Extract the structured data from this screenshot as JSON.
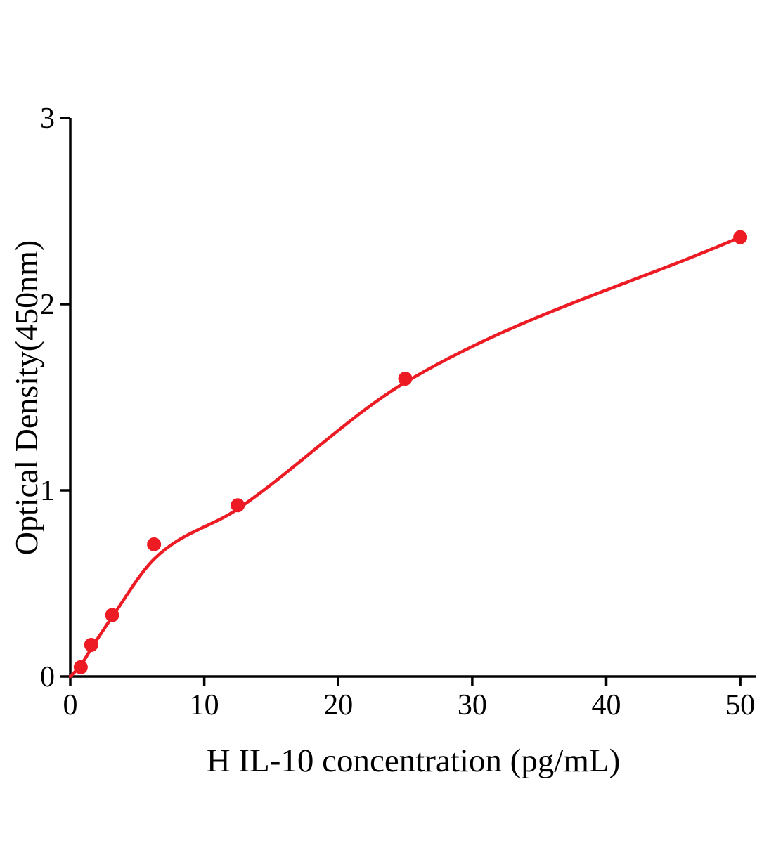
{
  "chart_data": {
    "type": "scatter",
    "title": "",
    "xlabel": "H IL-10 concentration (pg/mL)",
    "ylabel": "Optical Density(450nm)",
    "x": [
      0.78,
      1.56,
      3.125,
      6.25,
      12.5,
      25,
      50
    ],
    "y": [
      0.05,
      0.17,
      0.33,
      0.71,
      0.92,
      1.6,
      2.36
    ],
    "curve": [
      [
        0,
        0
      ],
      [
        0.78,
        0.06
      ],
      [
        1.56,
        0.15
      ],
      [
        3.125,
        0.32
      ],
      [
        6.25,
        0.63
      ],
      [
        12.5,
        0.9
      ],
      [
        25,
        1.58
      ],
      [
        50,
        2.36
      ]
    ],
    "xlim": [
      0,
      51.2
    ],
    "ylim": [
      0,
      3
    ],
    "xticks": [
      0,
      10,
      20,
      30,
      40,
      50
    ],
    "yticks": [
      0,
      1,
      2,
      3
    ],
    "grid": false,
    "legend_position": "none",
    "point_color": "#ed1c24",
    "curve_color": "#ed1c24",
    "axis_color": "#000000",
    "text_color": "#000000"
  }
}
